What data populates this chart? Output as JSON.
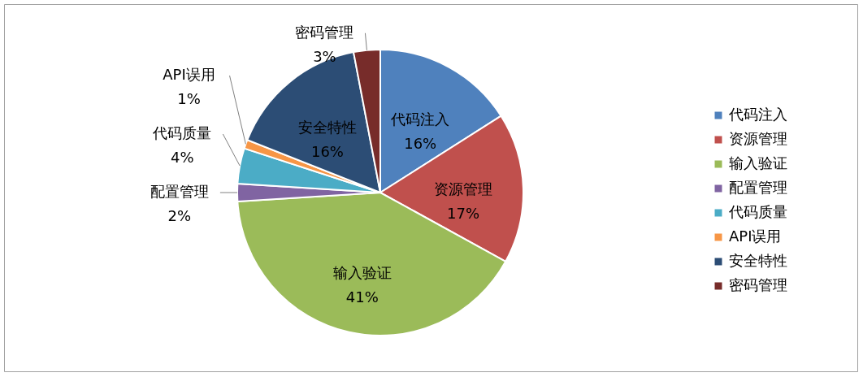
{
  "chart_data": {
    "type": "pie",
    "categories": [
      "代码注入",
      "资源管理",
      "输入验证",
      "配置管理",
      "代码质量",
      "API误用",
      "安全特性",
      "密码管理"
    ],
    "values": [
      16,
      17,
      41,
      2,
      4,
      1,
      16,
      3
    ],
    "value_labels": [
      "16%",
      "17%",
      "41%",
      "2%",
      "4%",
      "1%",
      "16%",
      "3%"
    ],
    "colors": [
      "#4f81bd",
      "#c0504d",
      "#9bbb59",
      "#8064a2",
      "#4bacc6",
      "#f79646",
      "#2c4d75",
      "#772c2a"
    ],
    "legend": "right"
  }
}
